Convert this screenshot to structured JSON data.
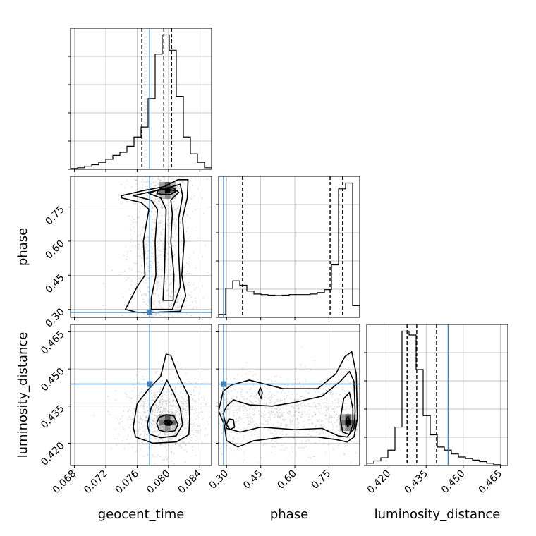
{
  "chart_data": {
    "type": "corner",
    "parameters": [
      "geocent_time",
      "phase",
      "luminosity_distance"
    ],
    "truths": {
      "geocent_time": 0.0776,
      "phase": 0.287,
      "luminosity_distance": 0.4439
    },
    "truth_color": "#4682b4",
    "axis_labels": {
      "geocent_time": "geocent_time",
      "phase": "phase",
      "luminosity_distance": "luminosity_distance"
    },
    "ranges": {
      "geocent_time": [
        0.0675,
        0.0855
      ],
      "phase": [
        0.265,
        0.885
      ],
      "luminosity_distance": [
        0.411,
        0.468
      ]
    },
    "ticks": {
      "geocent_time": [
        "0.068",
        "0.072",
        "0.076",
        "0.080",
        "0.084"
      ],
      "phase": [
        "0.30",
        "0.45",
        "0.60",
        "0.75"
      ],
      "luminosity_distance": [
        "0.420",
        "0.435",
        "0.450",
        "0.465"
      ]
    },
    "grid": true,
    "histograms": {
      "geocent_time": {
        "quantiles": [
          0.0766,
          0.0794,
          0.0804
        ],
        "edges": [
          0.0675,
          0.0684,
          0.0693,
          0.0702,
          0.0711,
          0.072,
          0.0729,
          0.0738,
          0.0747,
          0.0756,
          0.0765,
          0.0774,
          0.0783,
          0.0792,
          0.0801,
          0.081,
          0.0819,
          0.0828,
          0.0837,
          0.0846,
          0.0855
        ],
        "counts": [
          1,
          2,
          4,
          6,
          9,
          13,
          18,
          22,
          30,
          42,
          55,
          92,
          150,
          175,
          155,
          95,
          42,
          20,
          9,
          2
        ]
      },
      "phase": {
        "quantiles": [
          0.37,
          0.755,
          0.81
        ],
        "edges": [
          0.265,
          0.296,
          0.327,
          0.358,
          0.389,
          0.42,
          0.451,
          0.482,
          0.513,
          0.544,
          0.575,
          0.606,
          0.637,
          0.668,
          0.699,
          0.73,
          0.761,
          0.792,
          0.823,
          0.854,
          0.885
        ],
        "counts": [
          10,
          100,
          125,
          110,
          90,
          80,
          78,
          76,
          75,
          76,
          78,
          78,
          78,
          80,
          85,
          95,
          180,
          440,
          460,
          40
        ]
      },
      "luminosity_distance": {
        "quantiles": [
          0.4273,
          0.4312,
          0.4392
        ],
        "edges": [
          0.411,
          0.41385,
          0.4167,
          0.41955,
          0.4224,
          0.42525,
          0.4281,
          0.43095,
          0.4338,
          0.43665,
          0.4395,
          0.44235,
          0.4452,
          0.44805,
          0.4509,
          0.45375,
          0.4566,
          0.45945,
          0.4623,
          0.46515,
          0.468
        ],
        "counts": [
          3,
          6,
          10,
          20,
          50,
          175,
          170,
          125,
          65,
          40,
          24,
          20,
          15,
          11,
          9,
          7,
          5,
          3,
          1,
          0
        ]
      }
    },
    "pairs": [
      {
        "x": "geocent_time",
        "y": "phase",
        "contours": [
          [
            [
              0.0776,
              0.286
            ],
            [
              0.0815,
              0.292
            ],
            [
              0.0822,
              0.36
            ],
            [
              0.0817,
              0.45
            ],
            [
              0.082,
              0.6
            ],
            [
              0.0818,
              0.7
            ],
            [
              0.0824,
              0.79
            ],
            [
              0.0825,
              0.87
            ],
            [
              0.0812,
              0.87
            ],
            [
              0.0795,
              0.84
            ],
            [
              0.0765,
              0.82
            ],
            [
              0.074,
              0.8
            ],
            [
              0.074,
              0.79
            ],
            [
              0.0765,
              0.77
            ],
            [
              0.0775,
              0.74
            ],
            [
              0.0768,
              0.6
            ],
            [
              0.077,
              0.45
            ],
            [
              0.076,
              0.4
            ],
            [
              0.0745,
              0.3
            ],
            [
              0.076,
              0.287
            ]
          ],
          [
            [
              0.0778,
              0.3
            ],
            [
              0.0805,
              0.3
            ],
            [
              0.0815,
              0.4
            ],
            [
              0.0813,
              0.55
            ],
            [
              0.0813,
              0.7
            ],
            [
              0.0818,
              0.8
            ],
            [
              0.0815,
              0.85
            ],
            [
              0.0795,
              0.83
            ],
            [
              0.0768,
              0.81
            ],
            [
              0.0755,
              0.8
            ],
            [
              0.0778,
              0.78
            ],
            [
              0.0786,
              0.74
            ],
            [
              0.0783,
              0.6
            ],
            [
              0.0784,
              0.45
            ],
            [
              0.0778,
              0.35
            ]
          ],
          [
            [
              0.0793,
              0.34
            ],
            [
              0.0806,
              0.34
            ],
            [
              0.0807,
              0.45
            ],
            [
              0.0803,
              0.6
            ],
            [
              0.0805,
              0.72
            ],
            [
              0.0803,
              0.78
            ],
            [
              0.0813,
              0.815
            ],
            [
              0.0805,
              0.838
            ],
            [
              0.079,
              0.83
            ],
            [
              0.0775,
              0.81
            ],
            [
              0.079,
              0.79
            ],
            [
              0.0797,
              0.74
            ],
            [
              0.0796,
              0.62
            ],
            [
              0.0795,
              0.47
            ]
          ],
          [
            [
              0.0785,
              0.808
            ],
            [
              0.0803,
              0.805
            ],
            [
              0.081,
              0.82
            ],
            [
              0.0798,
              0.83
            ],
            [
              0.0787,
              0.823
            ]
          ]
        ],
        "density_peak": [
          0.0799,
          0.823
        ]
      },
      {
        "x": "geocent_time",
        "y": "luminosity_distance",
        "contours": [
          [
            [
              0.0755,
              0.4265
            ],
            [
              0.0758,
              0.4225
            ],
            [
              0.078,
              0.42
            ],
            [
              0.081,
              0.4205
            ],
            [
              0.0826,
              0.4235
            ],
            [
              0.0827,
              0.43
            ],
            [
              0.0826,
              0.439
            ],
            [
              0.0813,
              0.447
            ],
            [
              0.0803,
              0.4555
            ],
            [
              0.0797,
              0.456
            ],
            [
              0.079,
              0.447
            ],
            [
              0.0775,
              0.442
            ],
            [
              0.076,
              0.436
            ]
          ],
          [
            [
              0.0773,
              0.4275
            ],
            [
              0.0776,
              0.4236
            ],
            [
              0.079,
              0.4222
            ],
            [
              0.081,
              0.423
            ],
            [
              0.0818,
              0.4275
            ],
            [
              0.0815,
              0.434
            ],
            [
              0.0807,
              0.44
            ],
            [
              0.0798,
              0.4455
            ],
            [
              0.079,
              0.44
            ],
            [
              0.0778,
              0.4345
            ]
          ],
          [
            [
              0.0785,
              0.428
            ],
            [
              0.0788,
              0.4253
            ],
            [
              0.0797,
              0.4245
            ],
            [
              0.0808,
              0.425
            ],
            [
              0.0812,
              0.4275
            ],
            [
              0.0807,
              0.431
            ],
            [
              0.0797,
              0.4315
            ],
            [
              0.0788,
              0.4305
            ]
          ],
          [
            [
              0.0794,
              0.4283
            ],
            [
              0.0797,
              0.4273
            ],
            [
              0.0802,
              0.4273
            ],
            [
              0.0805,
              0.4283
            ],
            [
              0.0801,
              0.4293
            ],
            [
              0.0796,
              0.4292
            ]
          ]
        ],
        "density_peak": [
          0.0799,
          0.4283
        ]
      },
      {
        "x": "phase",
        "y": "luminosity_distance",
        "contours": [
          [
            [
              0.265,
              0.433
            ],
            [
              0.29,
              0.4275
            ],
            [
              0.3,
              0.421
            ],
            [
              0.35,
              0.4185
            ],
            [
              0.42,
              0.421
            ],
            [
              0.55,
              0.4225
            ],
            [
              0.7,
              0.4225
            ],
            [
              0.78,
              0.4215
            ],
            [
              0.83,
              0.4205
            ],
            [
              0.86,
              0.4225
            ],
            [
              0.875,
              0.43
            ],
            [
              0.87,
              0.448
            ],
            [
              0.85,
              0.457
            ],
            [
              0.82,
              0.455
            ],
            [
              0.78,
              0.448
            ],
            [
              0.7,
              0.442
            ],
            [
              0.55,
              0.442
            ],
            [
              0.4,
              0.4455
            ],
            [
              0.32,
              0.4435
            ],
            [
              0.285,
              0.441
            ]
          ],
          [
            [
              0.285,
              0.432
            ],
            [
              0.3,
              0.426
            ],
            [
              0.36,
              0.4245
            ],
            [
              0.45,
              0.4265
            ],
            [
              0.6,
              0.4255
            ],
            [
              0.72,
              0.426
            ],
            [
              0.79,
              0.423
            ],
            [
              0.83,
              0.4225
            ],
            [
              0.86,
              0.426
            ],
            [
              0.865,
              0.433
            ],
            [
              0.86,
              0.445
            ],
            [
              0.84,
              0.449
            ],
            [
              0.8,
              0.445
            ],
            [
              0.72,
              0.439
            ],
            [
              0.6,
              0.4365
            ],
            [
              0.5,
              0.435
            ],
            [
              0.4,
              0.4355
            ],
            [
              0.33,
              0.4375
            ],
            [
              0.3,
              0.435
            ]
          ],
          [
            [
              0.8,
              0.43
            ],
            [
              0.81,
              0.4245
            ],
            [
              0.84,
              0.4235
            ],
            [
              0.855,
              0.4275
            ],
            [
              0.855,
              0.434
            ],
            [
              0.84,
              0.4405
            ],
            [
              0.815,
              0.438
            ]
          ],
          [
            [
              0.3,
              0.4275
            ],
            [
              0.315,
              0.4255
            ],
            [
              0.335,
              0.4265
            ],
            [
              0.33,
              0.4295
            ],
            [
              0.31,
              0.4298
            ]
          ],
          [
            [
              0.44,
              0.4405
            ],
            [
              0.452,
              0.438
            ],
            [
              0.457,
              0.4405
            ],
            [
              0.448,
              0.4425
            ]
          ],
          [
            [
              0.826,
              0.4285
            ],
            [
              0.833,
              0.4265
            ],
            [
              0.842,
              0.4283
            ],
            [
              0.835,
              0.4307
            ],
            [
              0.828,
              0.4302
            ]
          ]
        ],
        "density_peak": [
          0.834,
          0.4283
        ]
      }
    ]
  }
}
